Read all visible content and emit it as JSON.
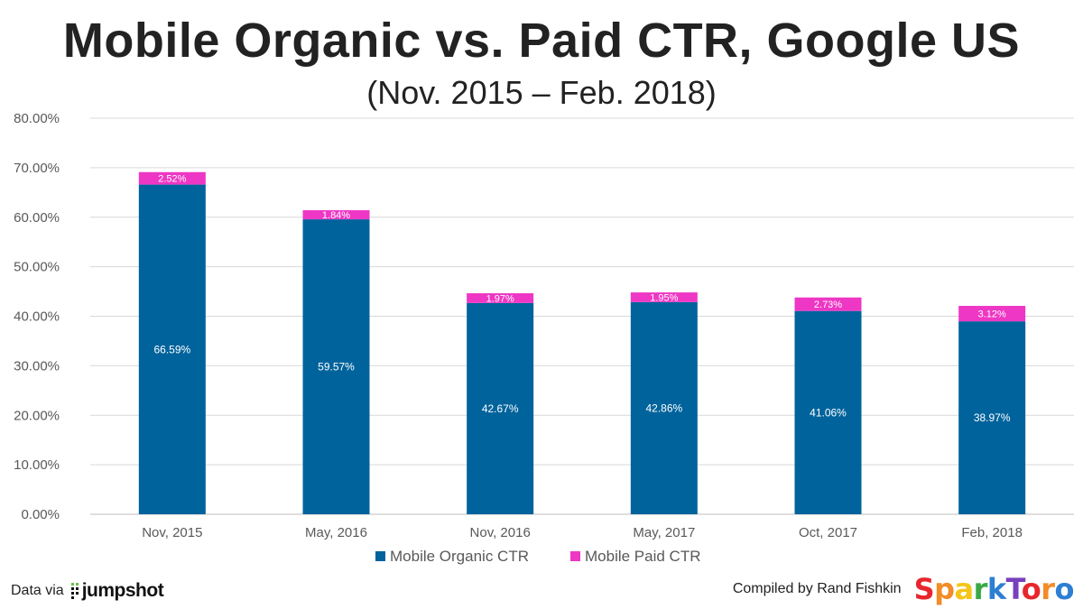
{
  "chart_data": {
    "type": "bar",
    "stacked": true,
    "title": "Mobile Organic vs. Paid CTR, Google US",
    "subtitle": "(Nov. 2015 – Feb. 2018)",
    "categories": [
      "Nov, 2015",
      "May, 2016",
      "Nov, 2016",
      "May, 2017",
      "Oct, 2017",
      "Feb, 2018"
    ],
    "series": [
      {
        "name": "Mobile Organic CTR",
        "color": "#00639c",
        "values": [
          66.59,
          59.57,
          42.67,
          42.86,
          41.06,
          38.97
        ],
        "labels": [
          "66.59%",
          "59.57%",
          "42.67%",
          "42.86%",
          "41.06%",
          "38.97%"
        ]
      },
      {
        "name": "Mobile Paid CTR",
        "color": "#ee37c4",
        "values": [
          2.52,
          1.84,
          1.97,
          1.95,
          2.73,
          3.12
        ],
        "labels": [
          "2.52%",
          "1.84%",
          "1.97%",
          "1.95%",
          "2.73%",
          "3.12%"
        ]
      }
    ],
    "ylim": [
      0,
      80
    ],
    "yticks": [
      "0.00%",
      "10.00%",
      "20.00%",
      "30.00%",
      "40.00%",
      "50.00%",
      "60.00%",
      "70.00%",
      "80.00%"
    ],
    "grid": true,
    "legend_position": "bottom-center"
  },
  "footer": {
    "data_via": "Data via",
    "source_logo": "jumpshot",
    "compiled_by": "Compiled by Rand Fishkin",
    "brand_logo": "SparkToro",
    "brand_colors": [
      "#e8262d",
      "#f28c28",
      "#f5c518",
      "#3aa845",
      "#2d7fd3",
      "#7a3fc0",
      "#e8262d",
      "#f28c28",
      "#2d7fd3"
    ]
  }
}
